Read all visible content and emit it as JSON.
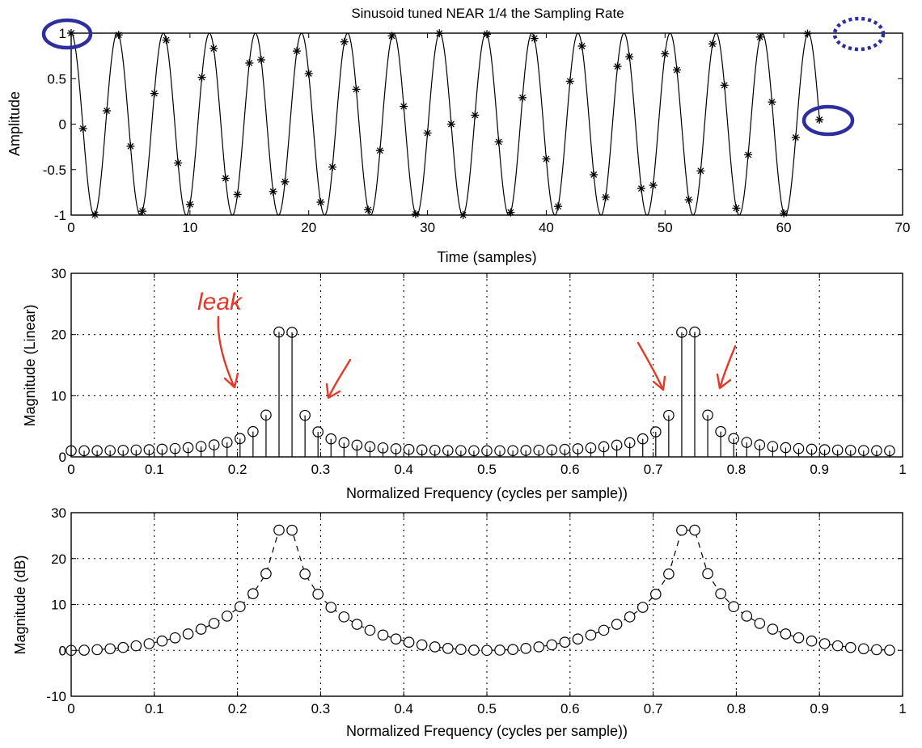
{
  "chart_data": [
    {
      "type": "line",
      "title": "Sinusoid tuned NEAR 1/4 the Sampling Rate",
      "xlabel": "Time (samples)",
      "ylabel": "Amplitude",
      "xlim": [
        0,
        70
      ],
      "ylim": [
        -1,
        1
      ],
      "xticks": [
        "0",
        "10",
        "20",
        "30",
        "40",
        "50",
        "60",
        "70"
      ],
      "yticks": [
        "-1",
        "-0.5",
        "0",
        "0.5",
        "1"
      ],
      "grid": false,
      "signal": {
        "cycles_per_sample": 0.2578125,
        "samples": 64,
        "amplitude": 1
      },
      "series": [
        {
          "style": "continuous curve"
        },
        {
          "style": "star markers at integer samples 0..63"
        }
      ]
    },
    {
      "type": "stem",
      "title": "",
      "xlabel": "Normalized Frequency (cycles per sample))",
      "ylabel": "Magnitude (Linear)",
      "xlim": [
        0,
        1
      ],
      "ylim": [
        0,
        30
      ],
      "xticks": [
        "0",
        "0.1",
        "0.2",
        "0.3",
        "0.4",
        "0.5",
        "0.6",
        "0.7",
        "0.8",
        "0.9",
        "1"
      ],
      "yticks": [
        "0",
        "10",
        "20",
        "30"
      ],
      "grid": true,
      "x_step": 0.015625,
      "points": 64,
      "peaks": [
        {
          "x": 0.25,
          "y": 20.3
        },
        {
          "x": 0.2656,
          "y": 20.3
        },
        {
          "x": 0.7344,
          "y": 20.3
        },
        {
          "x": 0.75,
          "y": 20.3
        }
      ]
    },
    {
      "type": "line",
      "title": "",
      "xlabel": "Normalized Frequency (cycles per sample))",
      "ylabel": "Magnitude (dB)",
      "xlim": [
        0,
        1
      ],
      "ylim": [
        -10,
        30
      ],
      "xticks": [
        "0",
        "0.1",
        "0.2",
        "0.3",
        "0.4",
        "0.5",
        "0.6",
        "0.7",
        "0.8",
        "0.9",
        "1"
      ],
      "yticks": [
        "-10",
        "0",
        "10",
        "20",
        "30"
      ],
      "grid": true,
      "marker": "circle",
      "line": "dashed",
      "x_step": 0.015625,
      "points": 64,
      "peak_db": 26.2
    }
  ],
  "annotations": {
    "handwriting": "leak",
    "ink_color": "#e23a2a",
    "ring_color": "#2e2e9e"
  }
}
